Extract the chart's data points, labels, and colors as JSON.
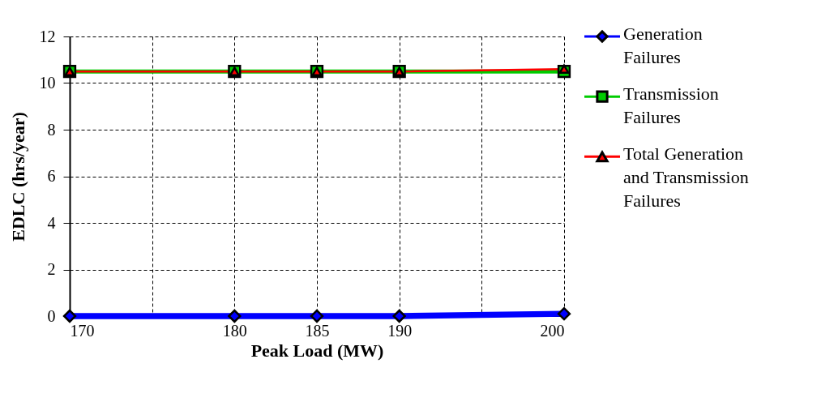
{
  "chart_data": {
    "type": "line",
    "xlabel": "Peak Load (MW)",
    "ylabel": "EDLC (hrs/year)",
    "x": [
      170,
      180,
      185,
      190,
      200
    ],
    "series": [
      {
        "name": "Generation Failures",
        "color": "#0000ff",
        "marker": "diamond",
        "values": [
          0,
          0,
          0,
          0,
          0.1
        ]
      },
      {
        "name": "Transmission Failures",
        "color": "#00cc00",
        "marker": "square",
        "values": [
          10.5,
          10.5,
          10.5,
          10.5,
          10.5
        ]
      },
      {
        "name": "Total Generation and Transmission Failures",
        "color": "#ff0000",
        "marker": "triangle",
        "values": [
          10.5,
          10.5,
          10.5,
          10.5,
          10.6
        ]
      }
    ],
    "xlim": [
      170,
      200
    ],
    "xticks": [
      170,
      {
        "value": 175,
        "label": null
      },
      180,
      185,
      190,
      {
        "value": 195,
        "label": null
      },
      200
    ],
    "ylim": [
      0,
      12
    ],
    "yticks": [
      0,
      2,
      4,
      6,
      8,
      10,
      12
    ],
    "grid": true,
    "legend": "right",
    "line_style": "solid"
  }
}
